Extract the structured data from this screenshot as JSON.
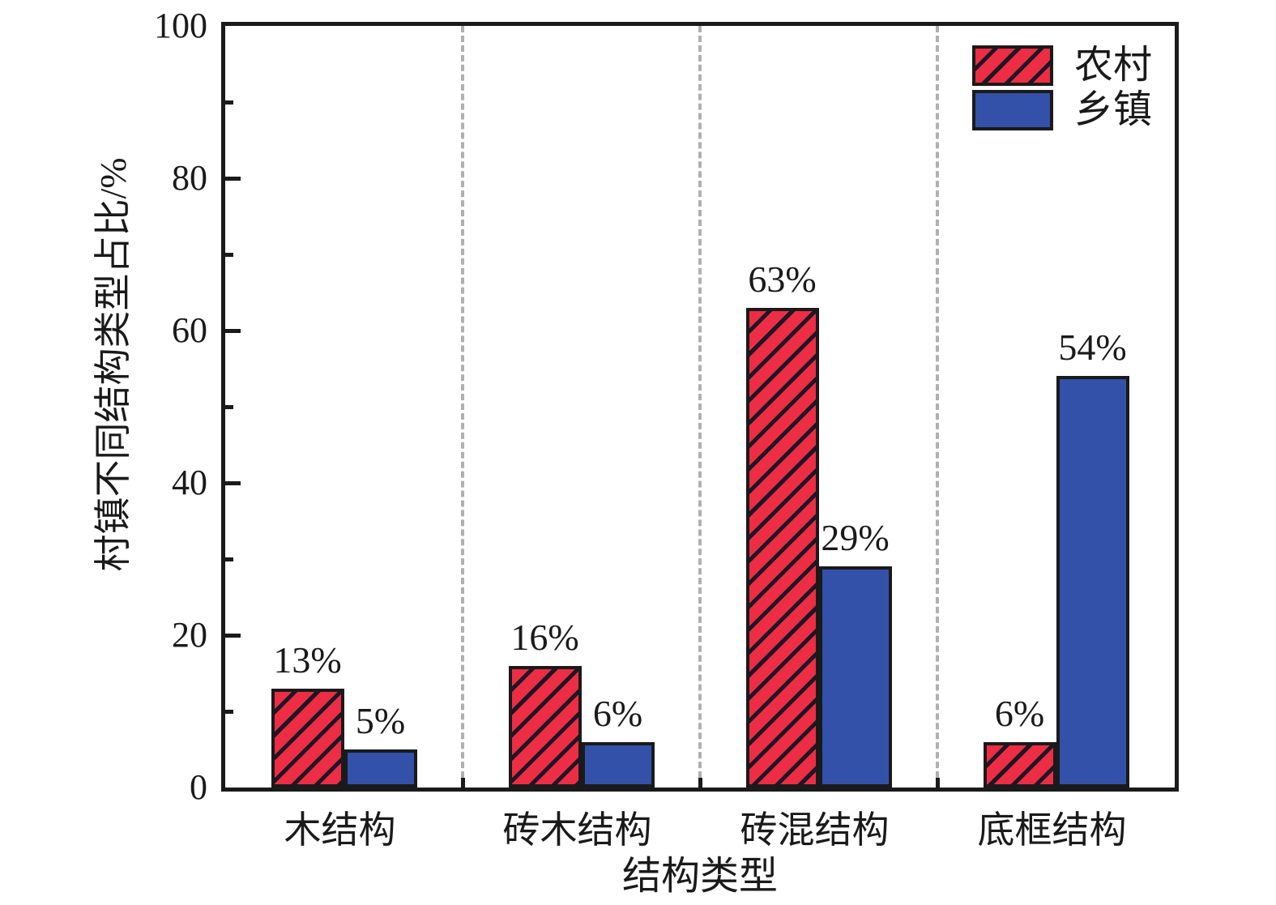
{
  "chart_data": {
    "type": "bar",
    "title": "",
    "xlabel": "结构类型",
    "ylabel": "村镇不同结构类型占比/%",
    "categories": [
      "木结构",
      "砖木结构",
      "砖混结构",
      "底框结构"
    ],
    "series": [
      {
        "name": "农村",
        "values": [
          13,
          16,
          63,
          6
        ],
        "color": "#ed2d43",
        "hatch": true
      },
      {
        "name": "乡镇",
        "values": [
          5,
          6,
          29,
          54
        ],
        "color": "#3351a9",
        "hatch": false
      }
    ],
    "value_label_suffix": "%",
    "ylim": [
      0,
      100
    ],
    "yticks": [
      0,
      20,
      40,
      60,
      80,
      100
    ],
    "yticks_minor": [
      10,
      30,
      50,
      70,
      90
    ],
    "grid": "vertical-dashed-at-category-boundaries",
    "legend_position": "top-right-inside"
  },
  "colors": {
    "axis": "#1a1a1a",
    "hatch_line": "#1d1526",
    "grid_dash": "#b0b0b0",
    "background": "#ffffff",
    "text": "#1a1a1a"
  }
}
